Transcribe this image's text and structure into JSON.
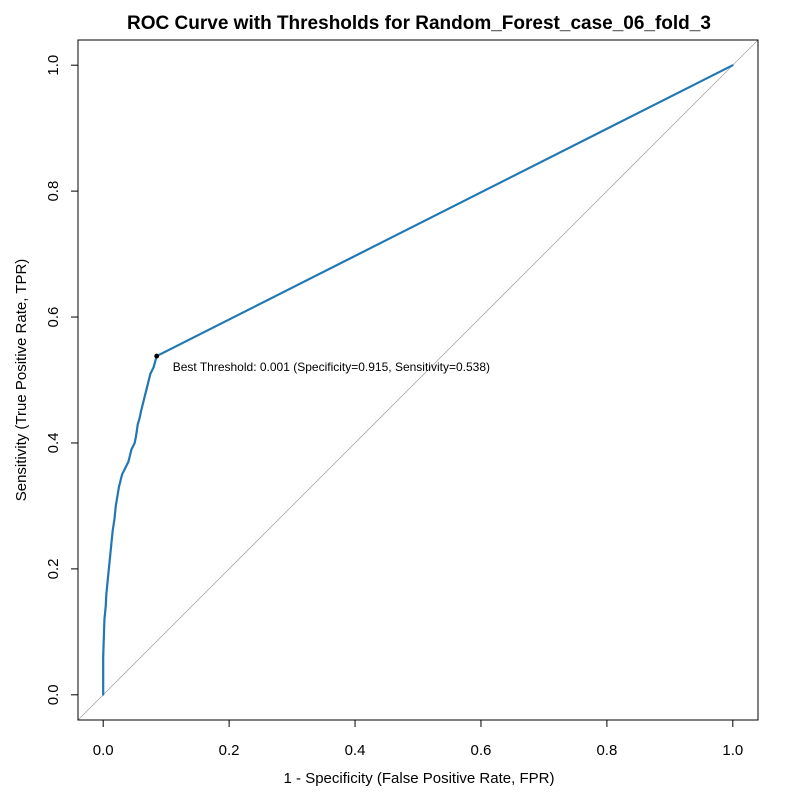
{
  "chart_data": {
    "type": "line",
    "title": "ROC Curve with Thresholds for Random_Forest_case_06_fold_3",
    "xlabel": "1 - Specificity (False Positive Rate, FPR)",
    "ylabel": "Sensitivity (True Positive Rate, TPR)",
    "xlim": [
      -0.04,
      1.04
    ],
    "ylim": [
      -0.04,
      1.04
    ],
    "x_ticks": [
      0.0,
      0.2,
      0.4,
      0.6,
      0.8,
      1.0
    ],
    "x_tick_labels": [
      "0.0",
      "0.2",
      "0.4",
      "0.6",
      "0.8",
      "1.0"
    ],
    "y_ticks": [
      0.0,
      0.2,
      0.4,
      0.6,
      0.8,
      1.0
    ],
    "y_tick_labels": [
      "0.0",
      "0.2",
      "0.4",
      "0.6",
      "0.8",
      "1.0"
    ],
    "grid": false,
    "series": [
      {
        "color": "#1f77b4",
        "x": [
          0.0,
          0.0,
          0.002,
          0.004,
          0.005,
          0.008,
          0.01,
          0.012,
          0.015,
          0.018,
          0.02,
          0.025,
          0.03,
          0.035,
          0.04,
          0.045,
          0.05,
          0.052,
          0.055,
          0.058,
          0.06,
          0.065,
          0.07,
          0.075,
          0.08,
          0.085,
          1.0
        ],
        "y": [
          0.0,
          0.06,
          0.12,
          0.14,
          0.16,
          0.19,
          0.21,
          0.23,
          0.26,
          0.28,
          0.3,
          0.33,
          0.35,
          0.36,
          0.37,
          0.39,
          0.4,
          0.41,
          0.43,
          0.44,
          0.45,
          0.47,
          0.49,
          0.51,
          0.52,
          0.538,
          1.0
        ]
      }
    ],
    "diagonal": {
      "color": "#a9a9a9",
      "x": [
        0.0,
        1.0
      ],
      "y": [
        0.0,
        1.0
      ]
    },
    "best_point": {
      "x": 0.085,
      "y": 0.538,
      "label": "Best Threshold: 0.001 (Specificity=0.915, Sensitivity=0.538)"
    }
  }
}
